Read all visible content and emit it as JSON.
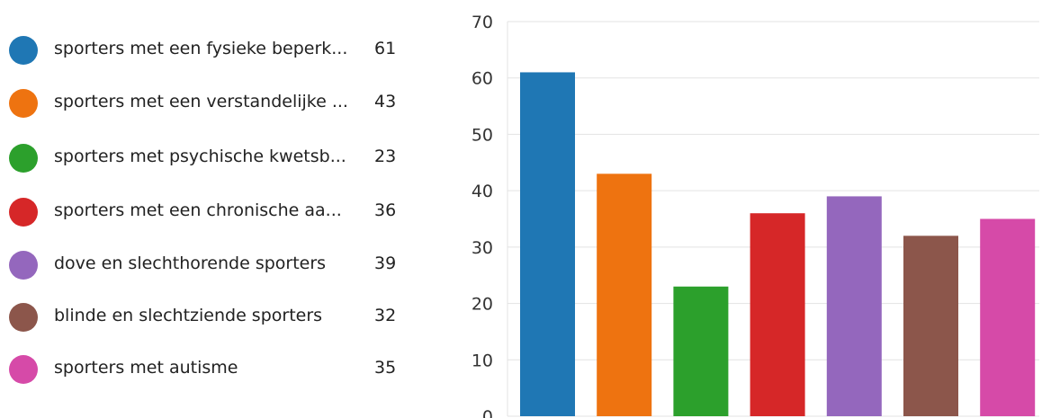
{
  "legend": [
    {
      "label": "sporters met een fysieke beperk...",
      "value": "61",
      "color": "#1f77b4"
    },
    {
      "label": "sporters met een verstandelijke ...",
      "value": "43",
      "color": "#ee7310"
    },
    {
      "label": "sporters met psychische kwetsb...",
      "value": "23",
      "color": "#2ca02c"
    },
    {
      "label": "sporters met een chronische aa...",
      "value": "36",
      "color": "#d62728"
    },
    {
      "label": "dove en slechthorende sporters",
      "value": "39",
      "color": "#9467bd"
    },
    {
      "label": "blinde en slechtziende sporters",
      "value": "32",
      "color": "#8c564b"
    },
    {
      "label": "sporters met autisme",
      "value": "35",
      "color": "#d64aa8"
    }
  ],
  "chart_data": {
    "type": "bar",
    "categories": [
      "sporters met een fysieke beperk...",
      "sporters met een verstandelijke ...",
      "sporters met psychische kwetsb...",
      "sporters met een chronische aa...",
      "dove en slechthorende sporters",
      "blinde en slechtziende sporters",
      "sporters met autisme"
    ],
    "values": [
      61,
      43,
      23,
      36,
      39,
      32,
      35
    ],
    "colors": [
      "#1f77b4",
      "#ee7310",
      "#2ca02c",
      "#d62728",
      "#9467bd",
      "#8c564b",
      "#d64aa8"
    ],
    "title": "",
    "xlabel": "",
    "ylabel": "",
    "ylim": [
      0,
      70
    ],
    "yticks": [
      "0",
      "10",
      "20",
      "30",
      "40",
      "50",
      "60",
      "70"
    ],
    "grid": true
  }
}
